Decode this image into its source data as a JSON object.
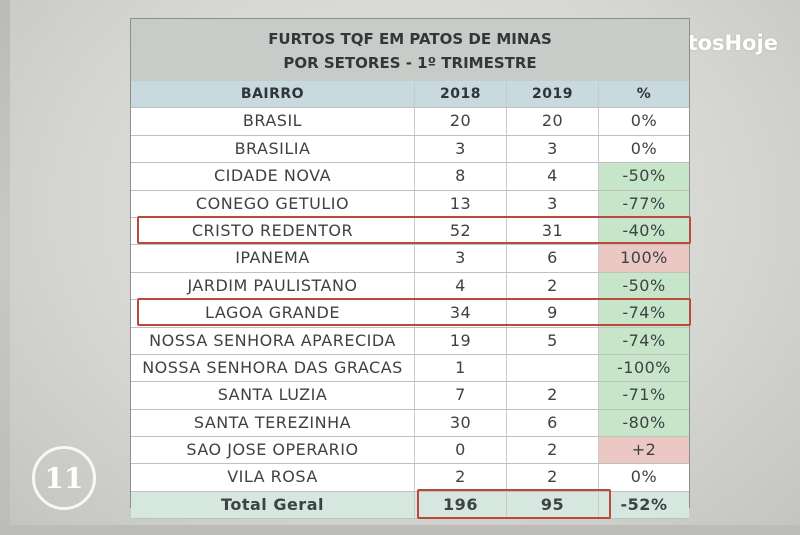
{
  "brand": {
    "logo_text": "PatosHoje",
    "seal_text": "11"
  },
  "table": {
    "title_line1": "FURTOS TQF EM PATOS DE MINAS",
    "title_line2": "POR SETORES - 1º TRIMESTRE",
    "headers": {
      "bairro": "BAIRRO",
      "y2018": "2018",
      "y2019": "2019",
      "pct": "%"
    },
    "rows": [
      {
        "bairro": "BRASIL",
        "y2018": "20",
        "y2019": "20",
        "pct": "0%",
        "tone": "none",
        "highlight": false
      },
      {
        "bairro": "BRASILIA",
        "y2018": "3",
        "y2019": "3",
        "pct": "0%",
        "tone": "none",
        "highlight": false
      },
      {
        "bairro": "CIDADE NOVA",
        "y2018": "8",
        "y2019": "4",
        "pct": "-50%",
        "tone": "green",
        "highlight": false
      },
      {
        "bairro": "CONEGO GETULIO",
        "y2018": "13",
        "y2019": "3",
        "pct": "-77%",
        "tone": "green",
        "highlight": false
      },
      {
        "bairro": "CRISTO REDENTOR",
        "y2018": "52",
        "y2019": "31",
        "pct": "-40%",
        "tone": "green",
        "highlight": true
      },
      {
        "bairro": "IPANEMA",
        "y2018": "3",
        "y2019": "6",
        "pct": "100%",
        "tone": "red",
        "highlight": false
      },
      {
        "bairro": "JARDIM PAULISTANO",
        "y2018": "4",
        "y2019": "2",
        "pct": "-50%",
        "tone": "green",
        "highlight": false
      },
      {
        "bairro": "LAGOA GRANDE",
        "y2018": "34",
        "y2019": "9",
        "pct": "-74%",
        "tone": "green",
        "highlight": true
      },
      {
        "bairro": "NOSSA SENHORA APARECIDA",
        "y2018": "19",
        "y2019": "5",
        "pct": "-74%",
        "tone": "green",
        "highlight": false
      },
      {
        "bairro": "NOSSA SENHORA DAS GRACAS",
        "y2018": "1",
        "y2019": "",
        "pct": "-100%",
        "tone": "green",
        "highlight": false
      },
      {
        "bairro": "SANTA LUZIA",
        "y2018": "7",
        "y2019": "2",
        "pct": "-71%",
        "tone": "green",
        "highlight": false
      },
      {
        "bairro": "SANTA TEREZINHA",
        "y2018": "30",
        "y2019": "6",
        "pct": "-80%",
        "tone": "green",
        "highlight": false
      },
      {
        "bairro": "SAO JOSE OPERARIO",
        "y2018": "0",
        "y2019": "2",
        "pct": "+2",
        "tone": "red",
        "highlight": false
      },
      {
        "bairro": "VILA ROSA",
        "y2018": "2",
        "y2019": "2",
        "pct": "0%",
        "tone": "none",
        "highlight": false
      }
    ],
    "total": {
      "label": "Total Geral",
      "y2018": "196",
      "y2019": "95",
      "pct": "-52%"
    }
  },
  "colors": {
    "green": "#c6e5c9",
    "red": "#ebc8c3",
    "highlight": "#b8493c",
    "header": "#c9d9e0"
  }
}
